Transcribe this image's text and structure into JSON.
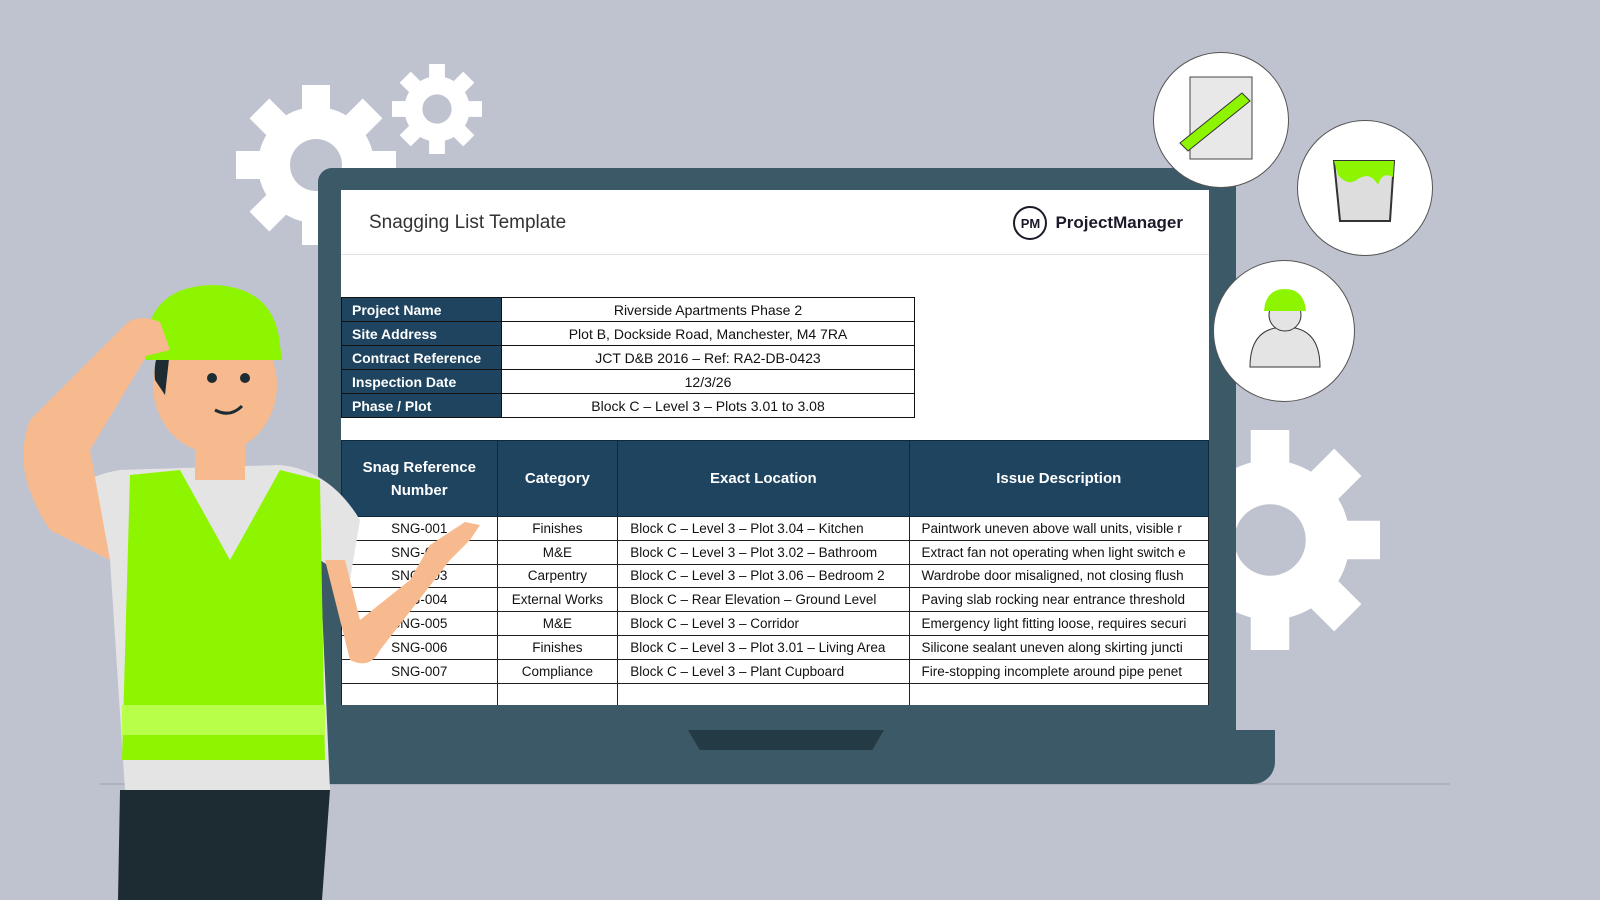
{
  "document": {
    "title": "Snagging List Template",
    "brand": {
      "mark": "PM",
      "name": "ProjectManager"
    }
  },
  "project_info": [
    {
      "label": "Project Name",
      "value": "Riverside Apartments Phase 2"
    },
    {
      "label": "Site Address",
      "value": "Plot B, Dockside Road, Manchester, M4 7RA"
    },
    {
      "label": "Contract Reference",
      "value": "JCT D&B 2016 – Ref: RA2-DB-0423"
    },
    {
      "label": "Inspection Date",
      "value": "12/3/26"
    },
    {
      "label": "Phase / Plot",
      "value": "Block C – Level 3 – Plots 3.01 to 3.08"
    }
  ],
  "snag_table": {
    "headers": [
      "Snag Reference Number",
      "Category",
      "Exact Location",
      "Issue Description"
    ],
    "rows": [
      [
        "SNG-001",
        "Finishes",
        "Block C – Level 3 – Plot 3.04 – Kitchen",
        "Paintwork uneven above wall units, visible r"
      ],
      [
        "SNG-002",
        "M&E",
        "Block C – Level 3 – Plot 3.02 – Bathroom",
        "Extract fan not operating when light switch e"
      ],
      [
        "SNG-003",
        "Carpentry",
        "Block C – Level 3 – Plot 3.06 – Bedroom 2",
        "Wardrobe door misaligned, not closing flush"
      ],
      [
        "SNG-004",
        "External Works",
        "Block C – Rear Elevation – Ground Level",
        "Paving slab rocking near entrance threshold"
      ],
      [
        "SNG-005",
        "M&E",
        "Block C – Level 3 – Corridor",
        "Emergency light fitting loose, requires securi"
      ],
      [
        "SNG-006",
        "Finishes",
        "Block C – Level 3 – Plot 3.01 – Living Area",
        "Silicone sealant uneven along skirting juncti"
      ],
      [
        "SNG-007",
        "Compliance",
        "Block C – Level 3 – Plant Cupboard",
        "Fire-stopping incomplete around pipe penet"
      ],
      [
        "",
        "",
        "",
        ""
      ]
    ]
  },
  "colors": {
    "background": "#bfc3cf",
    "laptop": "#3b5966",
    "header": "#1e4460",
    "accent_green": "#8ef500"
  },
  "icons": [
    "gear-icon",
    "pencil-document-icon",
    "paint-bucket-icon",
    "worker-avatar-icon"
  ]
}
